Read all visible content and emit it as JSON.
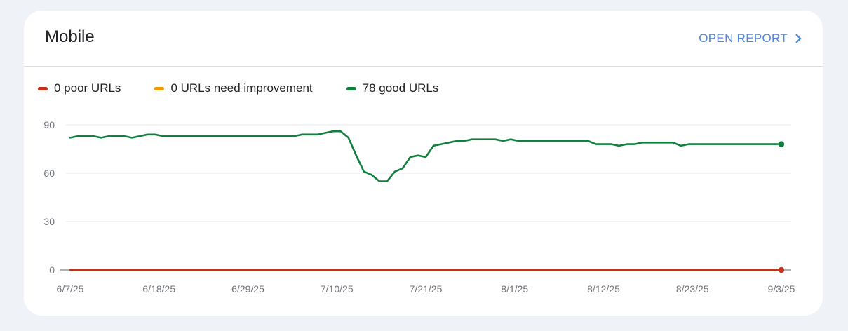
{
  "card": {
    "title": "Mobile",
    "open_report_label": "OPEN REPORT"
  },
  "colors": {
    "poor": "#c5301f",
    "needs_improvement": "#f29900",
    "good": "#11803e",
    "link": "#4a86e0"
  },
  "legend": [
    {
      "label": "0 poor URLs",
      "color": "#c5301f"
    },
    {
      "label": "0 URLs need improvement",
      "color": "#f29900"
    },
    {
      "label": "78 good URLs",
      "color": "#11803e"
    }
  ],
  "chart_data": {
    "type": "line",
    "ylim": [
      0,
      90
    ],
    "y_ticks": [
      0,
      30,
      60,
      90
    ],
    "x_ticks": [
      "6/7/25",
      "6/18/25",
      "6/29/25",
      "7/10/25",
      "7/21/25",
      "8/1/25",
      "8/12/25",
      "8/23/25",
      "9/3/25"
    ],
    "x_start": "6/7/25",
    "x_end": "9/3/25",
    "grid": true,
    "legend_position": "top-left",
    "series": [
      {
        "name": "0 poor URLs",
        "color": "#c5301f",
        "values": [
          0,
          0,
          0,
          0,
          0,
          0,
          0,
          0,
          0,
          0,
          0,
          0,
          0,
          0,
          0,
          0,
          0,
          0,
          0,
          0,
          0,
          0,
          0,
          0,
          0,
          0,
          0,
          0,
          0,
          0,
          0,
          0,
          0,
          0,
          0,
          0,
          0,
          0,
          0,
          0,
          0,
          0,
          0,
          0,
          0,
          0,
          0,
          0,
          0,
          0,
          0,
          0,
          0,
          0,
          0,
          0,
          0,
          0,
          0,
          0,
          0,
          0,
          0,
          0,
          0,
          0,
          0,
          0,
          0,
          0,
          0,
          0,
          0,
          0,
          0,
          0,
          0,
          0,
          0,
          0,
          0,
          0,
          0,
          0,
          0,
          0,
          0,
          0,
          0
        ]
      },
      {
        "name": "0 URLs need improvement",
        "color": "#f29900",
        "values": [
          0,
          0,
          0,
          0,
          0,
          0,
          0,
          0,
          0,
          0,
          0,
          0,
          0,
          0,
          0,
          0,
          0,
          0,
          0,
          0,
          0,
          0,
          0,
          0,
          0,
          0,
          0,
          0,
          0,
          0,
          0,
          0,
          0,
          0,
          0,
          0,
          0,
          0,
          0,
          0,
          0,
          0,
          0,
          0,
          0,
          0,
          0,
          0,
          0,
          0,
          0,
          0,
          0,
          0,
          0,
          0,
          0,
          0,
          0,
          0,
          0,
          0,
          0,
          0,
          0,
          0,
          0,
          0,
          0,
          0,
          0,
          0,
          0,
          0,
          0,
          0,
          0,
          0,
          0,
          0,
          0,
          0,
          0,
          0,
          0,
          0,
          0,
          0,
          0
        ]
      },
      {
        "name": "78 good URLs",
        "color": "#11803e",
        "values": [
          82,
          83,
          83,
          83,
          82,
          83,
          83,
          83,
          82,
          83,
          84,
          84,
          83,
          83,
          83,
          83,
          83,
          83,
          83,
          83,
          83,
          83,
          83,
          83,
          83,
          83,
          83,
          83,
          83,
          83,
          84,
          84,
          84,
          85,
          86,
          86,
          82,
          71,
          61,
          59,
          55,
          55,
          61,
          63,
          70,
          71,
          70,
          77,
          78,
          79,
          80,
          80,
          81,
          81,
          81,
          81,
          80,
          81,
          80,
          80,
          80,
          80,
          80,
          80,
          80,
          80,
          80,
          80,
          78,
          78,
          78,
          77,
          78,
          78,
          79,
          79,
          79,
          79,
          79,
          77,
          78,
          78,
          78,
          78,
          78,
          78,
          78,
          78,
          78,
          78,
          78,
          78,
          78
        ]
      }
    ]
  }
}
